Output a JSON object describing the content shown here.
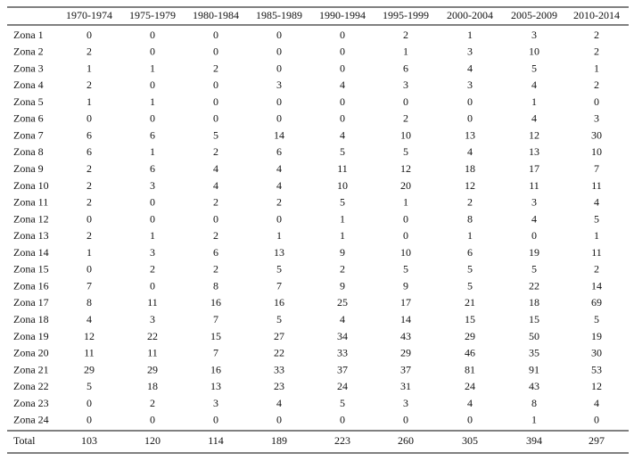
{
  "table": {
    "columns": [
      "1970-1974",
      "1975-1979",
      "1980-1984",
      "1985-1989",
      "1990-1994",
      "1995-1999",
      "2000-2004",
      "2005-2009",
      "2010-2014"
    ],
    "rows": [
      {
        "label": "Zona 1",
        "values": [
          0,
          0,
          0,
          0,
          0,
          2,
          1,
          3,
          2
        ]
      },
      {
        "label": "Zona 2",
        "values": [
          2,
          0,
          0,
          0,
          0,
          1,
          3,
          10,
          2
        ]
      },
      {
        "label": "Zona 3",
        "values": [
          1,
          1,
          2,
          0,
          0,
          6,
          4,
          5,
          1
        ]
      },
      {
        "label": "Zona 4",
        "values": [
          2,
          0,
          0,
          3,
          4,
          3,
          3,
          4,
          2
        ]
      },
      {
        "label": "Zona 5",
        "values": [
          1,
          1,
          0,
          0,
          0,
          0,
          0,
          1,
          0
        ]
      },
      {
        "label": "Zona 6",
        "values": [
          0,
          0,
          0,
          0,
          0,
          2,
          0,
          4,
          3
        ]
      },
      {
        "label": "Zona 7",
        "values": [
          6,
          6,
          5,
          14,
          4,
          10,
          13,
          12,
          30
        ]
      },
      {
        "label": "Zona 8",
        "values": [
          6,
          1,
          2,
          6,
          5,
          5,
          4,
          13,
          10
        ]
      },
      {
        "label": "Zona 9",
        "values": [
          2,
          6,
          4,
          4,
          11,
          12,
          18,
          17,
          7
        ]
      },
      {
        "label": "Zona 10",
        "values": [
          2,
          3,
          4,
          4,
          10,
          20,
          12,
          11,
          11
        ]
      },
      {
        "label": "Zona 11",
        "values": [
          2,
          0,
          2,
          2,
          5,
          1,
          2,
          3,
          4
        ]
      },
      {
        "label": "Zona 12",
        "values": [
          0,
          0,
          0,
          0,
          1,
          0,
          8,
          4,
          5
        ]
      },
      {
        "label": "Zona 13",
        "values": [
          2,
          1,
          2,
          1,
          1,
          0,
          1,
          0,
          1
        ]
      },
      {
        "label": "Zona 14",
        "values": [
          1,
          3,
          6,
          13,
          9,
          10,
          6,
          19,
          11
        ]
      },
      {
        "label": "Zona 15",
        "values": [
          0,
          2,
          2,
          5,
          2,
          5,
          5,
          5,
          2
        ]
      },
      {
        "label": "Zona 16",
        "values": [
          7,
          0,
          8,
          7,
          9,
          9,
          5,
          22,
          14
        ]
      },
      {
        "label": "Zona 17",
        "values": [
          8,
          11,
          16,
          16,
          25,
          17,
          21,
          18,
          69
        ]
      },
      {
        "label": "Zona 18",
        "values": [
          4,
          3,
          7,
          5,
          4,
          14,
          15,
          15,
          5
        ]
      },
      {
        "label": "Zona 19",
        "values": [
          12,
          22,
          15,
          27,
          34,
          43,
          29,
          50,
          19
        ]
      },
      {
        "label": "Zona 20",
        "values": [
          11,
          11,
          7,
          22,
          33,
          29,
          46,
          35,
          30
        ]
      },
      {
        "label": "Zona 21",
        "values": [
          29,
          29,
          16,
          33,
          37,
          37,
          81,
          91,
          53
        ]
      },
      {
        "label": "Zona 22",
        "values": [
          5,
          18,
          13,
          23,
          24,
          31,
          24,
          43,
          12
        ]
      },
      {
        "label": "Zona 23",
        "values": [
          0,
          2,
          3,
          4,
          5,
          3,
          4,
          8,
          4
        ]
      },
      {
        "label": "Zona 24",
        "values": [
          0,
          0,
          0,
          0,
          0,
          0,
          0,
          1,
          0
        ]
      }
    ],
    "total": {
      "label": "Total",
      "values": [
        103,
        120,
        114,
        189,
        223,
        260,
        305,
        394,
        297
      ]
    }
  }
}
